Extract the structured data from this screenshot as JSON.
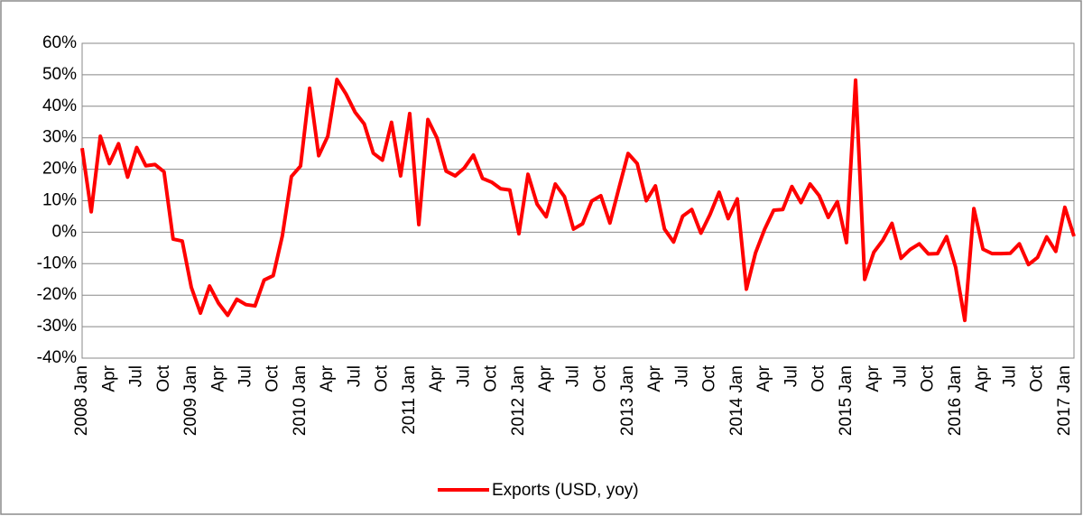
{
  "chart_data": {
    "type": "line",
    "categories": [
      "2008 Jan",
      null,
      null,
      "Apr",
      null,
      null,
      "Jul",
      null,
      null,
      "Oct",
      null,
      null,
      "2009 Jan",
      null,
      null,
      "Apr",
      null,
      null,
      "Jul",
      null,
      null,
      "Oct",
      null,
      null,
      "2010 Jan",
      null,
      null,
      "Apr",
      null,
      null,
      "Jul",
      null,
      null,
      "Oct",
      null,
      null,
      "2011 Jan",
      null,
      null,
      "Apr",
      null,
      null,
      "Jul",
      null,
      null,
      "Oct",
      null,
      null,
      "2012 Jan",
      null,
      null,
      "Apr",
      null,
      null,
      "Jul",
      null,
      null,
      "Oct",
      null,
      null,
      "2013 Jan",
      null,
      null,
      "Apr",
      null,
      null,
      "Jul",
      null,
      null,
      "Oct",
      null,
      null,
      "2014 Jan",
      null,
      null,
      "Apr",
      null,
      null,
      "Jul",
      null,
      null,
      "Oct",
      null,
      null,
      "2015 Jan",
      null,
      null,
      "Apr",
      null,
      null,
      "Jul",
      null,
      null,
      "Oct",
      null,
      null,
      "2016 Jan",
      null,
      null,
      "Apr",
      null,
      null,
      "Jul",
      null,
      null,
      "Oct",
      null,
      null,
      "2017 Jan",
      null
    ],
    "series": [
      {
        "name": "Exports (USD, yoy)",
        "color": "#ff0000",
        "values": [
          26.7,
          6.5,
          30.5,
          21.8,
          28.1,
          17.5,
          26.9,
          21.1,
          21.5,
          19.2,
          -2.2,
          -2.8,
          -17.5,
          -25.7,
          -17.1,
          -22.6,
          -26.4,
          -21.3,
          -23.0,
          -23.4,
          -15.2,
          -13.8,
          -1.2,
          17.7,
          21.0,
          45.7,
          24.3,
          30.5,
          48.5,
          43.9,
          38.1,
          34.4,
          25.1,
          22.9,
          34.9,
          17.9,
          37.7,
          2.4,
          35.8,
          29.9,
          19.4,
          17.9,
          20.4,
          24.5,
          17.1,
          15.9,
          13.8,
          13.4,
          -0.5,
          18.4,
          8.9,
          4.9,
          15.3,
          11.3,
          1.0,
          2.7,
          9.9,
          11.6,
          2.9,
          14.1,
          25.0,
          21.8,
          10.0,
          14.7,
          1.0,
          -3.1,
          5.1,
          7.2,
          -0.3,
          5.6,
          12.7,
          4.3,
          10.6,
          -18.1,
          -6.6,
          0.9,
          7.0,
          7.2,
          14.5,
          9.4,
          15.3,
          11.6,
          4.7,
          9.7,
          -3.3,
          48.3,
          -15.0,
          -6.4,
          -2.5,
          2.8,
          -8.3,
          -5.5,
          -3.7,
          -6.9,
          -6.8,
          -1.4,
          -11.2,
          -28.0,
          7.5,
          -5.4,
          -6.8,
          -6.8,
          -6.7,
          -3.7,
          -10.3,
          -8.0,
          -1.5,
          -6.1,
          7.9,
          -1.3
        ]
      }
    ],
    "ylim": [
      -40,
      60
    ],
    "yticks": [
      {
        "value": -40,
        "label": "-40%"
      },
      {
        "value": -30,
        "label": "-30%"
      },
      {
        "value": -20,
        "label": "-20%"
      },
      {
        "value": -10,
        "label": "-10%"
      },
      {
        "value": 0,
        "label": "0%"
      },
      {
        "value": 10,
        "label": "10%"
      },
      {
        "value": 20,
        "label": "20%"
      },
      {
        "value": 30,
        "label": "30%"
      },
      {
        "value": 40,
        "label": "40%"
      },
      {
        "value": 50,
        "label": "50%"
      },
      {
        "value": 60,
        "label": "60%"
      }
    ],
    "grid": true,
    "legend": "bottom"
  }
}
